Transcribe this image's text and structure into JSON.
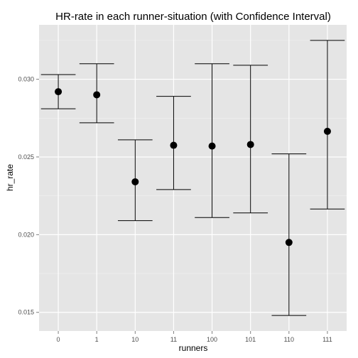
{
  "chart_data": {
    "type": "errorbar",
    "title": "HR-rate in each runner-situation (with Confidence Interval)",
    "xlabel": "runners",
    "ylabel": "hr_rate",
    "categories": [
      "0",
      "1",
      "10",
      "11",
      "100",
      "101",
      "110",
      "111"
    ],
    "series": [
      {
        "values": [
          0.0292,
          0.029,
          0.0234,
          0.02575,
          0.0257,
          0.0258,
          0.0195,
          0.02665
        ],
        "lower": [
          0.0281,
          0.0272,
          0.0209,
          0.0229,
          0.0211,
          0.0214,
          0.0148,
          0.02165
        ],
        "upper": [
          0.0303,
          0.031,
          0.0261,
          0.0289,
          0.031,
          0.0309,
          0.0252,
          0.0325
        ]
      }
    ],
    "yticks": [
      0.015,
      0.02,
      0.025,
      0.03
    ],
    "ytick_labels": [
      "0.015",
      "0.020",
      "0.025",
      "0.030"
    ],
    "ylim": [
      0.0138,
      0.0335
    ],
    "grid": true,
    "legend": "none",
    "colors": {
      "panel_background": "#e5e5e5",
      "grid_major": "#ffffff",
      "grid_minor": "#f2f2f2",
      "marker": "#000000",
      "errorbar": "#000000"
    }
  }
}
